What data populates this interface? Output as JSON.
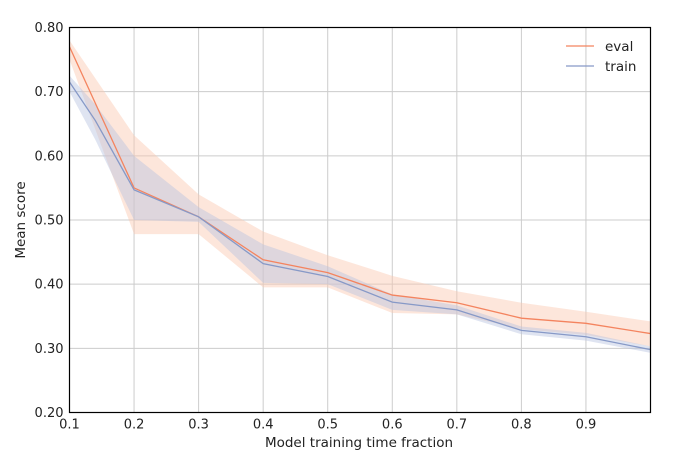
{
  "chart_data": {
    "type": "line",
    "title": "",
    "xlabel": "Model training time fraction",
    "ylabel": "Mean score",
    "xlim": [
      0.1,
      1.0
    ],
    "ylim": [
      0.2,
      0.8
    ],
    "grid": true,
    "legend_position": "top-right",
    "x_ticks": [
      0.1,
      0.2,
      0.3,
      0.4,
      0.5,
      0.6,
      0.7,
      0.8,
      0.9
    ],
    "x_tick_labels": [
      "0.1",
      "0.2",
      "0.3",
      "0.4",
      "0.5",
      "0.6",
      "0.7",
      "0.8",
      "0.9"
    ],
    "y_ticks": [
      0.2,
      0.3,
      0.4,
      0.5,
      0.6,
      0.7,
      0.8
    ],
    "y_tick_labels": [
      "0.20",
      "0.30",
      "0.40",
      "0.50",
      "0.60",
      "0.70",
      "0.80"
    ],
    "series": [
      {
        "name": "eval",
        "color": "#f4845f",
        "band_color": "#fbc7b0",
        "x": [
          0.1,
          0.2,
          0.3,
          0.4,
          0.5,
          0.6,
          0.7,
          0.8,
          0.9,
          1.0
        ],
        "y": [
          0.77,
          0.55,
          0.505,
          0.438,
          0.418,
          0.383,
          0.371,
          0.347,
          0.339,
          0.323
        ],
        "lower": [
          0.75,
          0.478,
          0.478,
          0.395,
          0.395,
          0.355,
          0.353,
          0.33,
          0.321,
          0.303
        ],
        "upper": [
          0.78,
          0.632,
          0.54,
          0.482,
          0.445,
          0.413,
          0.389,
          0.371,
          0.357,
          0.342
        ]
      },
      {
        "name": "train",
        "color": "#8799c7",
        "band_color": "#b9c3df",
        "x": [
          0.1,
          0.14,
          0.2,
          0.3,
          0.4,
          0.5,
          0.6,
          0.7,
          0.8,
          0.9,
          1.0
        ],
        "y": [
          0.715,
          0.655,
          0.547,
          0.505,
          0.432,
          0.412,
          0.372,
          0.36,
          0.328,
          0.318,
          0.298
        ],
        "lower": [
          0.7,
          0.625,
          0.5,
          0.497,
          0.402,
          0.4,
          0.36,
          0.353,
          0.322,
          0.312,
          0.293
        ],
        "upper": [
          0.725,
          0.68,
          0.6,
          0.52,
          0.462,
          0.428,
          0.384,
          0.367,
          0.334,
          0.324,
          0.303
        ]
      }
    ]
  }
}
